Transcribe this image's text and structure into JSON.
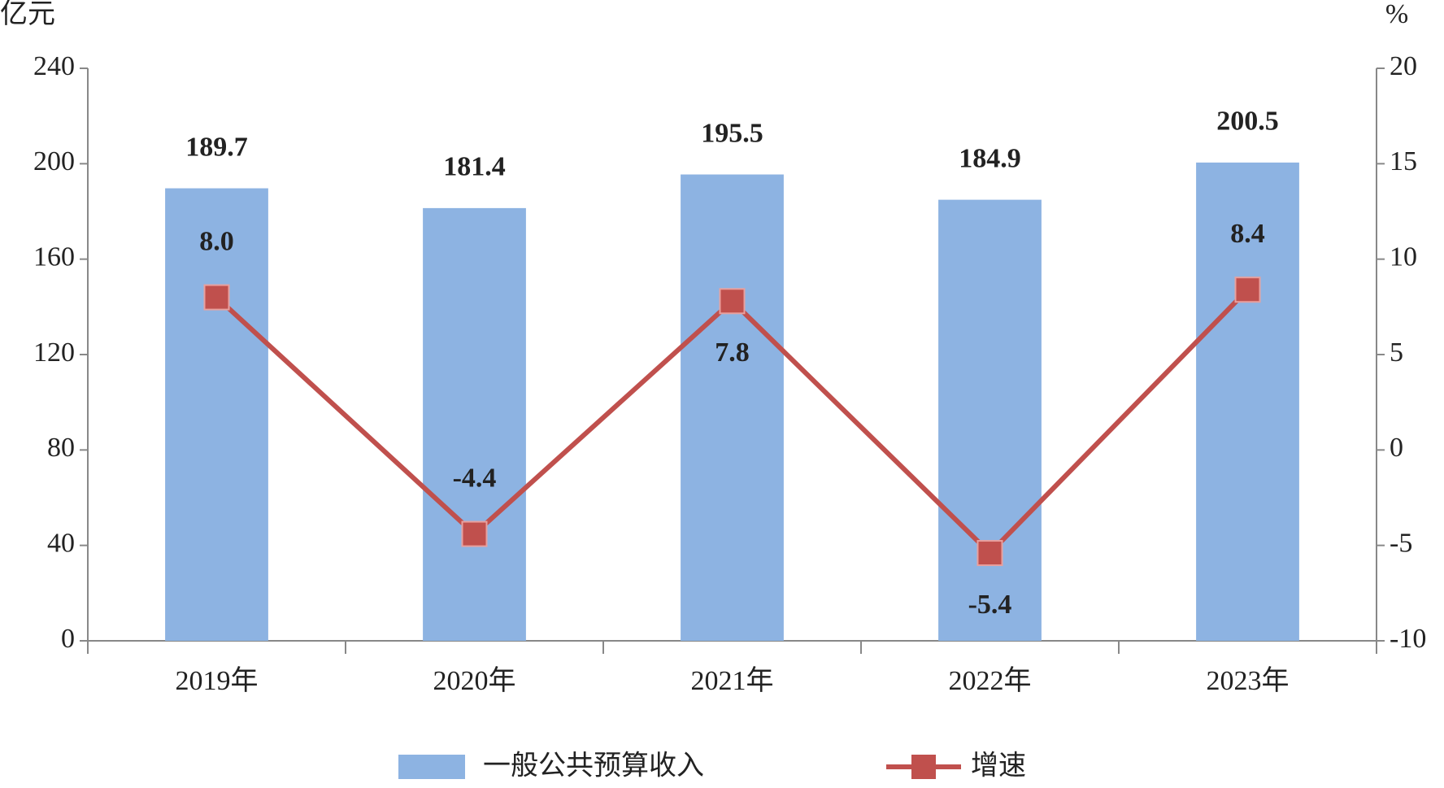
{
  "chart_data": {
    "type": "bar-line",
    "y_label": "亿元",
    "y2_label": "%",
    "categories": [
      "2019年",
      "2020年",
      "2021年",
      "2022年",
      "2023年"
    ],
    "series": [
      {
        "name": "一般公共预算收入",
        "type": "bar",
        "color": "#8db3e2",
        "values": [
          189.7,
          181.4,
          195.5,
          184.9,
          200.5
        ]
      },
      {
        "name": "增速",
        "type": "line",
        "axis": "y2",
        "color": "#c0504d",
        "values": [
          8.0,
          -4.4,
          7.8,
          -5.4,
          8.4
        ],
        "value_labels": [
          "8.0",
          "-4.4",
          "7.8",
          "-5.4",
          "8.4"
        ]
      }
    ],
    "ylim": [
      0,
      240
    ],
    "yticks": [
      0,
      40,
      80,
      120,
      160,
      200,
      240
    ],
    "y2lim": [
      -10,
      20
    ],
    "y2ticks": [
      -10,
      -5,
      0,
      5,
      10,
      15,
      20
    ],
    "legend": "bottom"
  }
}
